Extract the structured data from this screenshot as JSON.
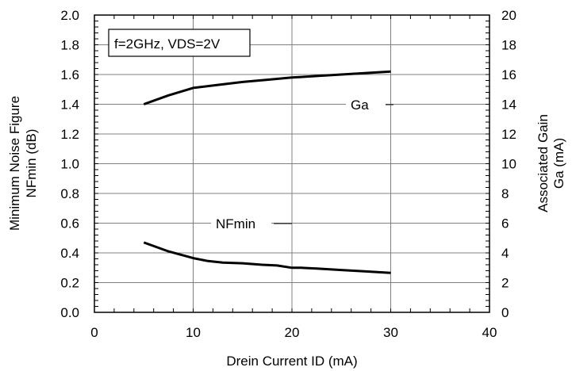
{
  "chart_data": {
    "type": "line",
    "title": "",
    "annotation": "f=2GHz, VDS=2V",
    "xlabel": "Drein Current  ID (mA)",
    "ylabel_left_line1": "Minimum Noise Figure",
    "ylabel_left_line2": "NFmin  (dB)",
    "ylabel_right_line1": "Associated Gain",
    "ylabel_right_line2": "Ga  (mA)",
    "xlim": [
      0,
      40
    ],
    "ylim_left": [
      0.0,
      2.0
    ],
    "ylim_right": [
      0,
      20
    ],
    "x_ticks": [
      "0",
      "10",
      "20",
      "30",
      "40"
    ],
    "y_left_ticks": [
      "0.0",
      "0.2",
      "0.4",
      "0.6",
      "0.8",
      "1.0",
      "1.2",
      "1.4",
      "1.6",
      "1.8",
      "2.0"
    ],
    "y_right_ticks": [
      "0",
      "2",
      "4",
      "6",
      "8",
      "10",
      "12",
      "14",
      "16",
      "18",
      "20"
    ],
    "grid": true,
    "series": [
      {
        "name": "Ga",
        "axis": "right",
        "x": [
          5,
          7.5,
          10,
          12.5,
          15,
          17.5,
          20,
          22.5,
          25,
          27.5,
          30
        ],
        "y": [
          14.0,
          14.6,
          15.1,
          15.3,
          15.5,
          15.65,
          15.8,
          15.9,
          16.0,
          16.1,
          16.2
        ]
      },
      {
        "name": "NFmin",
        "axis": "left",
        "x": [
          5,
          7.5,
          10,
          11.5,
          13,
          15,
          17,
          18.5,
          20,
          21,
          22.5,
          25,
          27.5,
          30
        ],
        "y": [
          0.47,
          0.41,
          0.365,
          0.345,
          0.335,
          0.33,
          0.32,
          0.315,
          0.3,
          0.3,
          0.295,
          0.285,
          0.275,
          0.265
        ]
      }
    ]
  }
}
